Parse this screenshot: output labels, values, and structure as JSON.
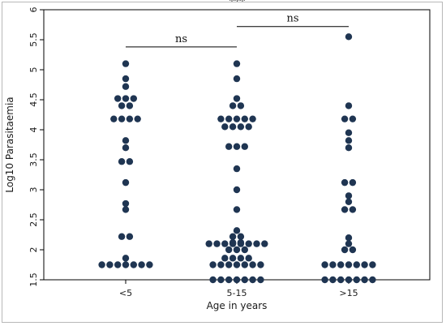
{
  "chart_data": {
    "type": "scatter",
    "xlabel": "Age in years",
    "ylabel": "Log10 Parasitaemia",
    "categories": [
      "<5",
      "5-15",
      ">15"
    ],
    "ylim": [
      1.5,
      6
    ],
    "yticks": [
      "1.5",
      "2",
      "2.5",
      "3",
      "3.5",
      "4",
      "4.5",
      "5",
      "5.5",
      "6"
    ],
    "grid": false,
    "point_color": "#1f3552",
    "groups": [
      {
        "category": "<5",
        "values": [
          5.1,
          4.85,
          4.72,
          4.52,
          4.52,
          4.52,
          4.4,
          4.4,
          4.18,
          4.18,
          4.18,
          4.18,
          3.82,
          3.7,
          3.47,
          3.47,
          3.12,
          2.77,
          2.67,
          2.22,
          2.22,
          1.86,
          1.75,
          1.75,
          1.75,
          1.75,
          1.75,
          1.75,
          1.75
        ]
      },
      {
        "category": "5-15",
        "values": [
          5.1,
          4.85,
          4.52,
          4.4,
          4.4,
          4.18,
          4.18,
          4.18,
          4.18,
          4.18,
          4.05,
          4.05,
          4.05,
          4.05,
          3.72,
          3.72,
          3.72,
          3.35,
          3.0,
          2.67,
          2.32,
          2.22,
          2.22,
          2.12,
          2.12,
          2.1,
          2.1,
          2.1,
          2.1,
          2.1,
          2.1,
          2.1,
          2.1,
          2.0,
          2.0,
          2.0,
          1.86,
          1.86,
          1.86,
          1.86,
          1.75,
          1.75,
          1.75,
          1.75,
          1.75,
          1.75,
          1.75,
          1.5,
          1.5,
          1.5,
          1.5,
          1.5,
          1.5,
          1.5
        ]
      },
      {
        "category": ">15",
        "values": [
          5.55,
          4.4,
          4.18,
          4.18,
          3.95,
          3.82,
          3.7,
          3.12,
          3.12,
          2.9,
          2.8,
          2.67,
          2.67,
          2.2,
          2.1,
          2.0,
          2.0,
          1.75,
          1.75,
          1.75,
          1.75,
          1.75,
          1.75,
          1.75,
          1.5,
          1.5,
          1.5,
          1.5,
          1.5,
          1.5,
          1.5
        ]
      }
    ],
    "annotations": [
      {
        "label": "***",
        "from": 0,
        "to": 2,
        "y": 6.0
      },
      {
        "label": "ns",
        "from": 0,
        "to": 1,
        "y": 5.38
      },
      {
        "label": "ns",
        "from": 1,
        "to": 2,
        "y": 5.72
      }
    ]
  }
}
